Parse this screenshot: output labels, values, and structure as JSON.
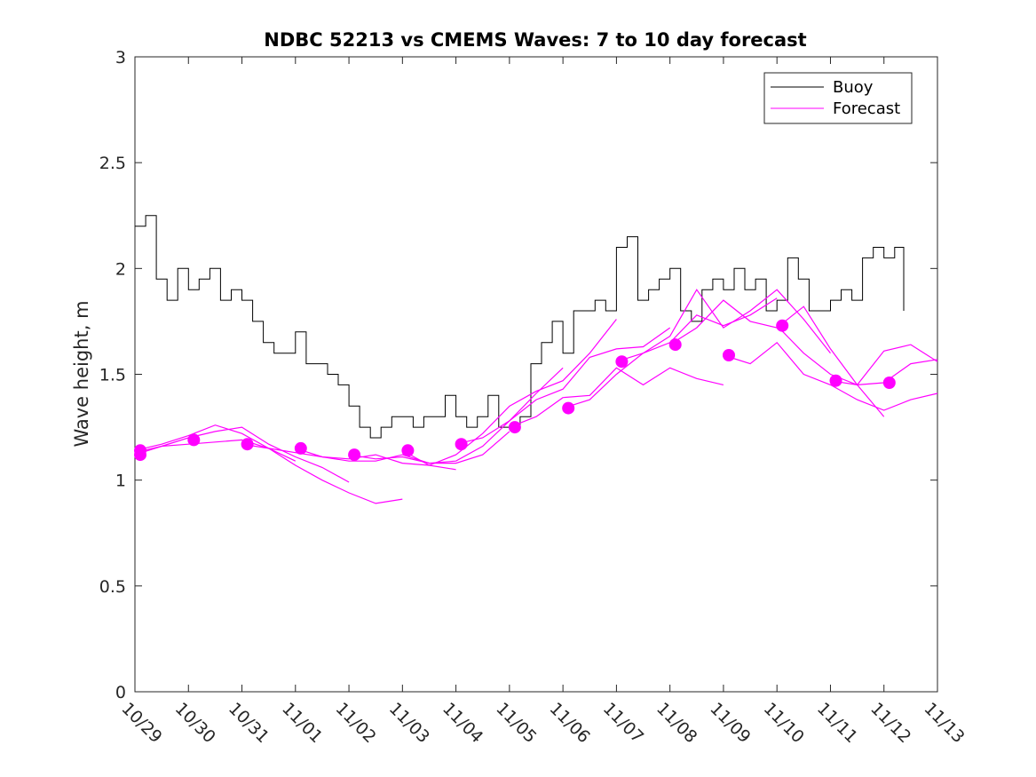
{
  "chart_data": {
    "type": "line",
    "title": "NDBC 52213 vs CMEMS Waves: 7 to 10 day forecast",
    "ylabel": "Wave height, m",
    "xlabel": "",
    "xlim": [
      0,
      15
    ],
    "ylim": [
      0,
      3
    ],
    "yticks": [
      0,
      0.5,
      1,
      1.5,
      2,
      2.5,
      3
    ],
    "ytick_labels": [
      "0",
      "0.5",
      "1",
      "1.5",
      "2",
      "2.5",
      "3"
    ],
    "xtick_labels": [
      "10/29",
      "10/30",
      "10/31",
      "11/01",
      "11/02",
      "11/03",
      "11/04",
      "11/05",
      "11/06",
      "11/07",
      "11/08",
      "11/09",
      "11/10",
      "11/11",
      "11/12",
      "11/13"
    ],
    "grid": false,
    "legend": {
      "placement": "top-right",
      "entries": [
        {
          "label": "Buoy",
          "color": "#000000"
        },
        {
          "label": "Forecast",
          "color": "#ff00ff"
        }
      ]
    },
    "colors": {
      "buoy": "#000000",
      "forecast": "#ff00ff"
    },
    "buoy": {
      "name": "Buoy",
      "x": [
        0,
        0.2,
        0.4,
        0.6,
        0.8,
        1.0,
        1.2,
        1.4,
        1.6,
        1.8,
        2.0,
        2.2,
        2.4,
        2.6,
        2.8,
        3.0,
        3.2,
        3.4,
        3.6,
        3.8,
        4.0,
        4.2,
        4.4,
        4.6,
        4.8,
        5.0,
        5.2,
        5.4,
        5.6,
        5.8,
        6.0,
        6.2,
        6.4,
        6.6,
        6.8,
        7.0,
        7.2,
        7.4,
        7.6,
        7.8,
        8.0,
        8.2,
        8.4,
        8.6,
        8.8,
        9.0,
        9.2,
        9.4,
        9.6,
        9.8,
        10.0,
        10.2,
        10.4,
        10.6,
        10.8,
        11.0,
        11.2,
        11.4,
        11.6,
        11.8,
        12.0,
        12.2,
        12.4,
        12.6,
        12.8,
        13.0,
        13.2,
        13.4,
        13.6,
        13.8,
        14.0,
        14.2,
        14.37
      ],
      "values": [
        2.2,
        2.25,
        1.95,
        1.85,
        2.0,
        1.9,
        1.95,
        2.0,
        1.85,
        1.9,
        1.85,
        1.75,
        1.65,
        1.6,
        1.6,
        1.7,
        1.55,
        1.55,
        1.5,
        1.45,
        1.35,
        1.25,
        1.2,
        1.25,
        1.3,
        1.3,
        1.25,
        1.3,
        1.3,
        1.4,
        1.3,
        1.25,
        1.3,
        1.4,
        1.25,
        1.25,
        1.3,
        1.55,
        1.65,
        1.75,
        1.6,
        1.8,
        1.8,
        1.85,
        1.8,
        2.1,
        2.15,
        1.85,
        1.9,
        1.95,
        2.0,
        1.8,
        1.75,
        1.9,
        1.95,
        1.9,
        2.0,
        1.9,
        1.95,
        1.8,
        1.85,
        2.05,
        1.95,
        1.8,
        1.8,
        1.85,
        1.9,
        1.85,
        2.05,
        2.1,
        2.05,
        2.1,
        1.8
      ]
    },
    "forecast_series": [
      {
        "name": "Forecast",
        "x": [
          0,
          0.5,
          1.0,
          1.5,
          2.0,
          2.5,
          3.0
        ],
        "values": [
          1.12,
          1.16,
          1.17,
          1.18,
          1.19,
          1.15,
          1.09
        ]
      },
      {
        "name": "Forecast",
        "x": [
          0,
          0.5,
          1.0,
          1.5,
          2.0,
          2.5,
          3.0,
          3.5,
          4.0
        ],
        "values": [
          1.13,
          1.16,
          1.2,
          1.23,
          1.25,
          1.17,
          1.11,
          1.06,
          0.99
        ]
      },
      {
        "name": "Forecast",
        "x": [
          0,
          0.5,
          1.0,
          1.5,
          2.0,
          2.5,
          3.0,
          3.5,
          4.0,
          4.5,
          5.0
        ],
        "values": [
          1.14,
          1.17,
          1.21,
          1.26,
          1.22,
          1.15,
          1.07,
          1.0,
          0.94,
          0.89,
          0.91
        ]
      },
      {
        "name": "Forecast",
        "x": [
          2.0,
          2.5,
          3.0,
          3.5,
          4.0,
          4.5,
          5.0,
          5.5,
          6.0
        ],
        "values": [
          1.17,
          1.15,
          1.13,
          1.11,
          1.1,
          1.12,
          1.08,
          1.07,
          1.05
        ]
      },
      {
        "name": "Forecast",
        "x": [
          3.0,
          3.5,
          4.0,
          4.5,
          5.0,
          5.5,
          6.0,
          6.5,
          7.0
        ],
        "values": [
          1.15,
          1.11,
          1.09,
          1.09,
          1.12,
          1.08,
          1.08,
          1.12,
          1.23
        ]
      },
      {
        "name": "Forecast",
        "x": [
          4.0,
          4.5,
          5.0,
          5.5,
          6.0,
          6.5,
          7.0,
          7.5,
          8.0
        ],
        "values": [
          1.12,
          1.1,
          1.11,
          1.08,
          1.09,
          1.16,
          1.28,
          1.41,
          1.53
        ]
      },
      {
        "name": "Forecast",
        "x": [
          5.0,
          5.5,
          6.0,
          6.5,
          7.0,
          7.5,
          8.0,
          8.5,
          9.0
        ],
        "values": [
          1.14,
          1.07,
          1.12,
          1.22,
          1.35,
          1.42,
          1.47,
          1.6,
          1.76
        ]
      },
      {
        "name": "Forecast",
        "x": [
          6.0,
          6.5,
          7.0,
          7.5,
          8.0,
          8.5,
          9.0,
          9.5,
          10.0
        ],
        "values": [
          1.17,
          1.2,
          1.28,
          1.38,
          1.43,
          1.58,
          1.62,
          1.63,
          1.72
        ]
      },
      {
        "name": "Forecast",
        "x": [
          7.0,
          7.5,
          8.0,
          8.5,
          9.0,
          9.5,
          10.0,
          10.5,
          11.0
        ],
        "values": [
          1.25,
          1.3,
          1.39,
          1.4,
          1.53,
          1.45,
          1.53,
          1.48,
          1.45
        ]
      },
      {
        "name": "Forecast",
        "x": [
          8.0,
          8.5,
          9.0,
          9.5,
          10.0,
          10.5,
          11.0,
          11.5,
          12.0
        ],
        "values": [
          1.34,
          1.38,
          1.5,
          1.6,
          1.65,
          1.78,
          1.73,
          1.78,
          1.86
        ]
      },
      {
        "name": "Forecast",
        "x": [
          9.0,
          9.5,
          10.0,
          10.5,
          11.0,
          11.5,
          12.0,
          12.5,
          13.0
        ],
        "values": [
          1.56,
          1.6,
          1.68,
          1.9,
          1.72,
          1.8,
          1.9,
          1.76,
          1.6
        ]
      },
      {
        "name": "Forecast",
        "x": [
          10.0,
          10.5,
          11.0,
          11.5,
          12.0,
          12.5,
          13.0,
          13.5,
          14.0
        ],
        "values": [
          1.64,
          1.72,
          1.85,
          1.75,
          1.72,
          1.82,
          1.62,
          1.45,
          1.3
        ]
      },
      {
        "name": "Forecast",
        "x": [
          11.0,
          11.5,
          12.0,
          12.5,
          13.0,
          13.5,
          14.0,
          14.5,
          15.0
        ],
        "values": [
          1.59,
          1.55,
          1.65,
          1.5,
          1.45,
          1.38,
          1.33,
          1.38,
          1.41
        ]
      },
      {
        "name": "Forecast",
        "x": [
          12.0,
          12.5,
          13.0,
          13.5,
          14.0,
          14.5,
          15.0
        ],
        "values": [
          1.73,
          1.6,
          1.5,
          1.45,
          1.61,
          1.64,
          1.56
        ]
      },
      {
        "name": "Forecast",
        "x": [
          13.0,
          13.5,
          14.0,
          14.5,
          15.0
        ],
        "values": [
          1.47,
          1.45,
          1.46,
          1.55,
          1.57
        ]
      }
    ],
    "forecast_points": {
      "name": "Forecast",
      "x": [
        0.1,
        0.1,
        1.1,
        2.1,
        3.1,
        4.1,
        5.1,
        6.1,
        7.1,
        8.1,
        9.1,
        10.1,
        11.1,
        12.1,
        13.1,
        14.1
      ],
      "values": [
        1.12,
        1.14,
        1.19,
        1.17,
        1.15,
        1.12,
        1.14,
        1.17,
        1.25,
        1.34,
        1.56,
        1.64,
        1.59,
        1.73,
        1.47,
        1.46
      ]
    }
  }
}
